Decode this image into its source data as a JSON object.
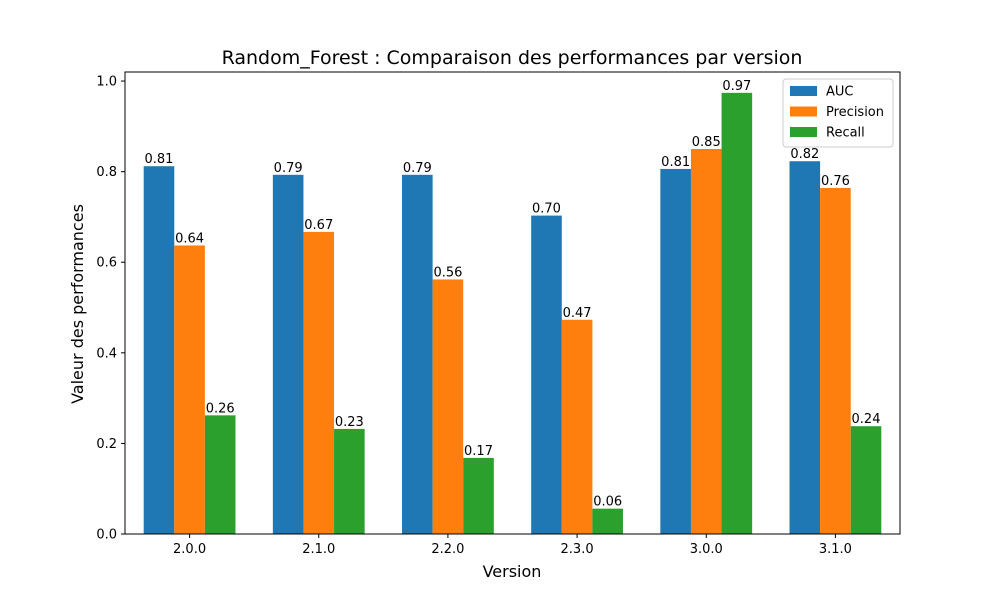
{
  "chart_data": {
    "type": "bar",
    "title": "Random_Forest : Comparaison des performances par version",
    "xlabel": "Version",
    "ylabel": "Valeur des performances",
    "categories": [
      "2.0.0",
      "2.1.0",
      "2.2.0",
      "2.3.0",
      "3.0.0",
      "3.1.0"
    ],
    "ylim": [
      0,
      1.02
    ],
    "yticks": [
      0.0,
      0.2,
      0.4,
      0.6,
      0.8,
      1.0
    ],
    "ytick_labels": [
      "0.0",
      "0.2",
      "0.4",
      "0.6",
      "0.8",
      "1.0"
    ],
    "grid": false,
    "legend_position": "top-right",
    "series": [
      {
        "name": "AUC",
        "color": "#1f77b4",
        "values": [
          0.812,
          0.793,
          0.793,
          0.703,
          0.806,
          0.823
        ],
        "labels": [
          "0.81",
          "0.79",
          "0.79",
          "0.70",
          "0.81",
          "0.82"
        ]
      },
      {
        "name": "Precision",
        "color": "#ff7f0e",
        "values": [
          0.637,
          0.667,
          0.562,
          0.473,
          0.85,
          0.764
        ],
        "labels": [
          "0.64",
          "0.67",
          "0.56",
          "0.47",
          "0.85",
          "0.76"
        ]
      },
      {
        "name": "Recall",
        "color": "#2ca02c",
        "values": [
          0.262,
          0.232,
          0.168,
          0.056,
          0.974,
          0.238
        ],
        "labels": [
          "0.26",
          "0.23",
          "0.17",
          "0.06",
          "0.97",
          "0.24"
        ]
      }
    ]
  }
}
